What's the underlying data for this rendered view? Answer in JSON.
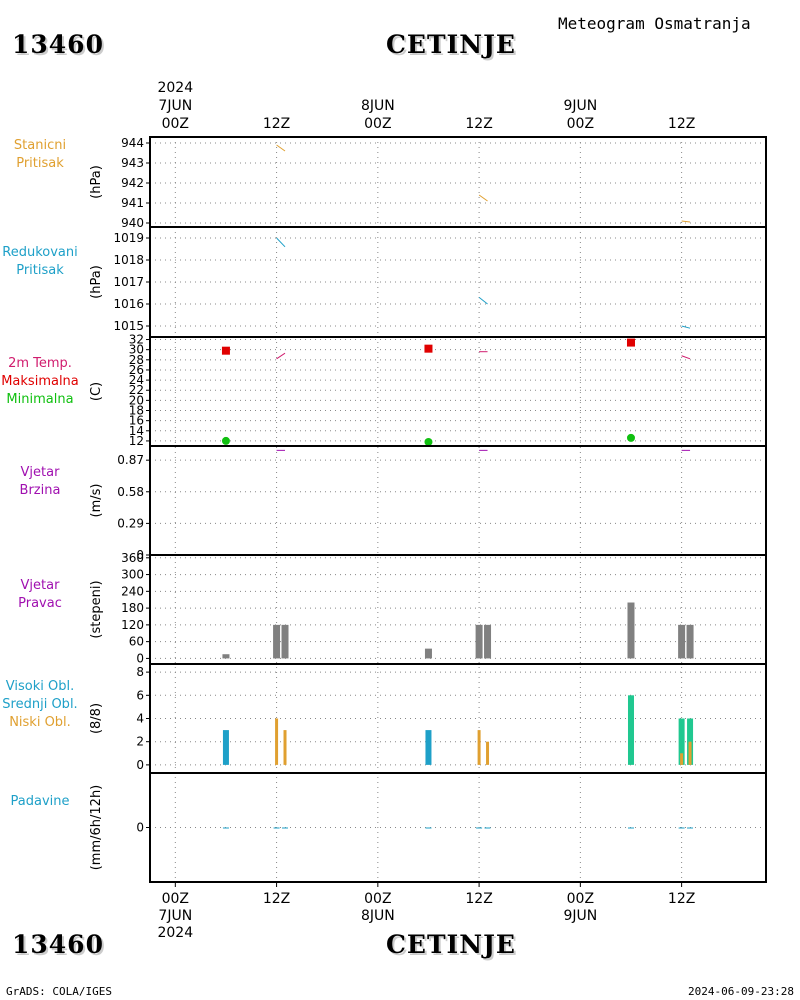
{
  "header": {
    "station_id": "13460",
    "station_name": "CETINJE",
    "subtitle": "Meteogram Osmatranja"
  },
  "footer": {
    "station_id": "13460",
    "station_name": "CETINJE",
    "credit": "GrADS: COLA/IGES",
    "timestamp": "2024-06-09-23:28"
  },
  "time_axis": {
    "year": "2024",
    "ticks": [
      {
        "hour": 0,
        "top": [
          "7JUN",
          "00Z"
        ],
        "bottom": [
          "00Z",
          "7JUN",
          "2024"
        ]
      },
      {
        "hour": 12,
        "top": [
          "12Z"
        ],
        "bottom": [
          "12Z"
        ]
      },
      {
        "hour": 24,
        "top": [
          "8JUN",
          "00Z"
        ],
        "bottom": [
          "00Z",
          "8JUN"
        ]
      },
      {
        "hour": 36,
        "top": [
          "12Z"
        ],
        "bottom": [
          "12Z"
        ]
      },
      {
        "hour": 48,
        "top": [
          "9JUN",
          "00Z"
        ],
        "bottom": [
          "00Z",
          "9JUN"
        ]
      },
      {
        "hour": 60,
        "top": [
          "12Z"
        ],
        "bottom": [
          "12Z"
        ]
      }
    ],
    "range_hours": [
      -3,
      70
    ]
  },
  "panels": [
    {
      "id": "station-pressure",
      "labels": [
        {
          "text": "Stanicni",
          "color": "#e0a030"
        },
        {
          "text": "Pritisak",
          "color": "#e0a030"
        }
      ],
      "unit": "(hPa)"
    },
    {
      "id": "reduced-pressure",
      "labels": [
        {
          "text": "Redukovani",
          "color": "#1ea0c8"
        },
        {
          "text": "Pritisak",
          "color": "#1ea0c8"
        }
      ],
      "unit": "(hPa)"
    },
    {
      "id": "temperature",
      "labels": [
        {
          "text": "2m Temp.",
          "color": "#d01c6e"
        },
        {
          "text": "Maksimalna",
          "color": "#e00000"
        },
        {
          "text": "Minimalna",
          "color": "#10c010"
        }
      ],
      "unit": "(C)"
    },
    {
      "id": "wind-speed",
      "labels": [
        {
          "text": "Vjetar",
          "color": "#a010b0"
        },
        {
          "text": "Brzina",
          "color": "#a010b0"
        }
      ],
      "unit": "(m/s)"
    },
    {
      "id": "wind-direction",
      "labels": [
        {
          "text": "Vjetar",
          "color": "#a010b0"
        },
        {
          "text": "Pravac",
          "color": "#a010b0"
        }
      ],
      "unit": "(stepeni)"
    },
    {
      "id": "clouds",
      "labels": [
        {
          "text": "Visoki Obl.",
          "color": "#1ea0c8"
        },
        {
          "text": "Srednji Obl.",
          "color": "#1ea0c8"
        },
        {
          "text": "Niski Obl.",
          "color": "#e0a030"
        }
      ],
      "unit": "(8/8)"
    },
    {
      "id": "precipitation",
      "labels": [
        {
          "text": "Padavine",
          "color": "#1ea0c8"
        }
      ],
      "unit": "(mm/6h/12h)"
    }
  ],
  "chart_data": [
    {
      "type": "line",
      "id": "station-pressure",
      "ylabel": "(hPa)",
      "ylim": [
        939.8,
        944.3
      ],
      "yticks": [
        940,
        941,
        942,
        943,
        944
      ],
      "color": "#e0a030",
      "series": [
        {
          "x": [
            12,
            13
          ],
          "y": [
            943.9,
            943.6
          ]
        },
        {
          "x": [
            36,
            37
          ],
          "y": [
            941.4,
            941.1
          ]
        },
        {
          "x": [
            60,
            61
          ],
          "y": [
            940.1,
            940.05
          ]
        }
      ]
    },
    {
      "type": "line",
      "id": "reduced-pressure",
      "ylabel": "(hPa)",
      "ylim": [
        1014.5,
        1019.5
      ],
      "yticks": [
        1015,
        1016,
        1017,
        1018,
        1019
      ],
      "color": "#1ea0c8",
      "series": [
        {
          "x": [
            12,
            13
          ],
          "y": [
            1019.0,
            1018.6
          ]
        },
        {
          "x": [
            36,
            37
          ],
          "y": [
            1016.3,
            1016.0
          ]
        },
        {
          "x": [
            60,
            61
          ],
          "y": [
            1015.0,
            1014.9
          ]
        }
      ]
    },
    {
      "type": "line",
      "id": "temperature",
      "ylabel": "(C)",
      "ylim": [
        11,
        32.5
      ],
      "yticks": [
        12,
        14,
        16,
        18,
        20,
        22,
        24,
        26,
        28,
        30,
        32
      ],
      "temp_2m": {
        "color": "#d01c6e",
        "series": [
          {
            "x": [
              12,
              13
            ],
            "y": [
              28.2,
              29.3
            ]
          },
          {
            "x": [
              36,
              37
            ],
            "y": [
              29.6,
              29.6
            ]
          },
          {
            "x": [
              60,
              61
            ],
            "y": [
              28.8,
              28.2
            ]
          }
        ]
      },
      "maximum": {
        "color": "#e00000",
        "x": [
          6,
          30,
          54
        ],
        "y": [
          29.8,
          30.2,
          31.4
        ]
      },
      "minimum": {
        "color": "#10c010",
        "x": [
          6,
          30,
          54
        ],
        "y": [
          12.0,
          11.8,
          12.6
        ]
      }
    },
    {
      "type": "line",
      "id": "wind-speed",
      "ylabel": "(m/s)",
      "ylim": [
        0,
        1.0
      ],
      "yticks": [
        0,
        0.29,
        0.58,
        0.87
      ],
      "color": "#a010b0",
      "series": [
        {
          "x": [
            12,
            13
          ],
          "y": [
            0.96,
            0.96
          ]
        },
        {
          "x": [
            36,
            37
          ],
          "y": [
            0.96,
            0.96
          ]
        },
        {
          "x": [
            60,
            61
          ],
          "y": [
            0.96,
            0.96
          ]
        }
      ]
    },
    {
      "type": "bar",
      "id": "wind-direction",
      "ylabel": "(stepeni)",
      "ylim": [
        -20,
        370
      ],
      "yticks": [
        0,
        60,
        120,
        180,
        240,
        300,
        360
      ],
      "color": "#808080",
      "x": [
        6,
        12,
        13,
        30,
        36,
        37,
        54,
        60,
        61
      ],
      "values": [
        15,
        120,
        120,
        35,
        120,
        120,
        200,
        120,
        120
      ]
    },
    {
      "type": "bar",
      "id": "clouds",
      "ylabel": "(8/8)",
      "ylim": [
        -0.7,
        8.7
      ],
      "yticks": [
        0,
        2,
        4,
        6,
        8
      ],
      "series": [
        {
          "name": "Visoki Obl.",
          "color": "#1ea0c8",
          "x": [
            6,
            30
          ],
          "values": [
            3,
            3
          ]
        },
        {
          "name": "Srednji Obl.",
          "color": "#20c890",
          "x": [
            54,
            60,
            61
          ],
          "values": [
            6,
            4,
            4
          ]
        },
        {
          "name": "Niski Obl.",
          "color": "#e0a030",
          "x": [
            12,
            13,
            36,
            37,
            60,
            61
          ],
          "values": [
            4,
            3,
            3,
            2,
            1,
            2
          ]
        }
      ]
    },
    {
      "type": "bar",
      "id": "precipitation",
      "ylabel": "(mm/6h/12h)",
      "ylim": [
        -1,
        1
      ],
      "yticks": [
        0
      ],
      "color": "#1ea0c8",
      "x": [
        6,
        12,
        13,
        30,
        36,
        37,
        54,
        60,
        61
      ],
      "values": [
        0,
        0,
        0,
        0,
        0,
        0,
        0,
        0,
        0
      ]
    }
  ]
}
